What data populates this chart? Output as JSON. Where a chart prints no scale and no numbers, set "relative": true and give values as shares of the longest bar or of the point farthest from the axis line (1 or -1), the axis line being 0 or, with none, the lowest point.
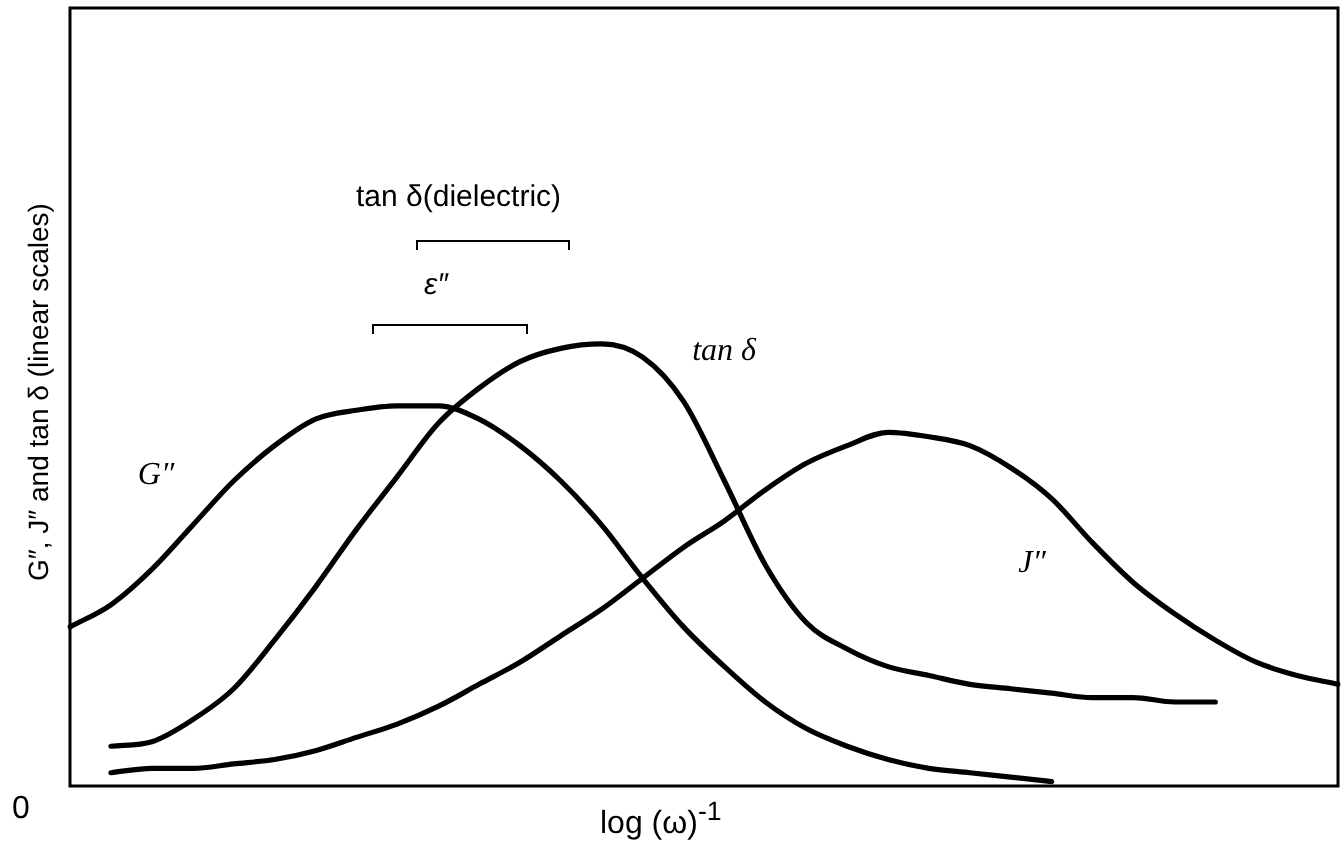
{
  "chart_data": {
    "type": "line",
    "relative": true,
    "xlabel": "log (ω)$^{-1}$",
    "ylabel": "G″, J″ and tan δ (linear scales)",
    "categories": [
      null,
      null,
      null,
      null,
      null,
      null,
      null,
      null,
      null,
      null,
      null,
      null,
      null,
      null,
      null,
      null,
      null,
      null,
      null,
      null,
      null,
      null,
      null,
      null,
      null,
      null,
      null,
      null,
      null,
      null,
      null,
      null
    ],
    "series": [
      {
        "name": "G″",
        "color": "#000000",
        "values": [
          0.36,
          0.41,
          0.49,
          0.59,
          0.69,
          0.77,
          0.83,
          0.85,
          0.86,
          0.86,
          0.83,
          0.77,
          0.69,
          0.59,
          0.47,
          0.36,
          0.27,
          0.19,
          0.13,
          0.09,
          0.06,
          0.04,
          0.03,
          0.02,
          0.01,
          null,
          null,
          null,
          null,
          null,
          null,
          null
        ]
      },
      {
        "name": "tan δ",
        "color": "#000000",
        "values": [
          null,
          0.09,
          0.1,
          0.15,
          0.22,
          0.33,
          0.45,
          0.58,
          0.7,
          0.82,
          0.9,
          0.96,
          0.99,
          1,
          0.97,
          0.87,
          0.69,
          0.5,
          0.37,
          0.31,
          0.27,
          0.25,
          0.23,
          0.22,
          0.21,
          0.2,
          0.2,
          0.19,
          0.19,
          null,
          null,
          null
        ]
      },
      {
        "name": "J″",
        "color": "#000000",
        "values": [
          null,
          0.03,
          0.04,
          0.04,
          0.05,
          0.06,
          0.08,
          0.11,
          0.14,
          0.18,
          0.23,
          0.28,
          0.34,
          0.4,
          0.47,
          0.54,
          0.6,
          0.67,
          0.73,
          0.77,
          0.8,
          0.79,
          0.77,
          0.72,
          0.65,
          0.55,
          0.46,
          0.39,
          0.33,
          0.28,
          0.25,
          0.23
        ]
      }
    ],
    "annotations": [
      "tan δ(dielectric)",
      "ε″",
      "0"
    ],
    "legend": false,
    "marker": "none",
    "line_style": "solid"
  }
}
